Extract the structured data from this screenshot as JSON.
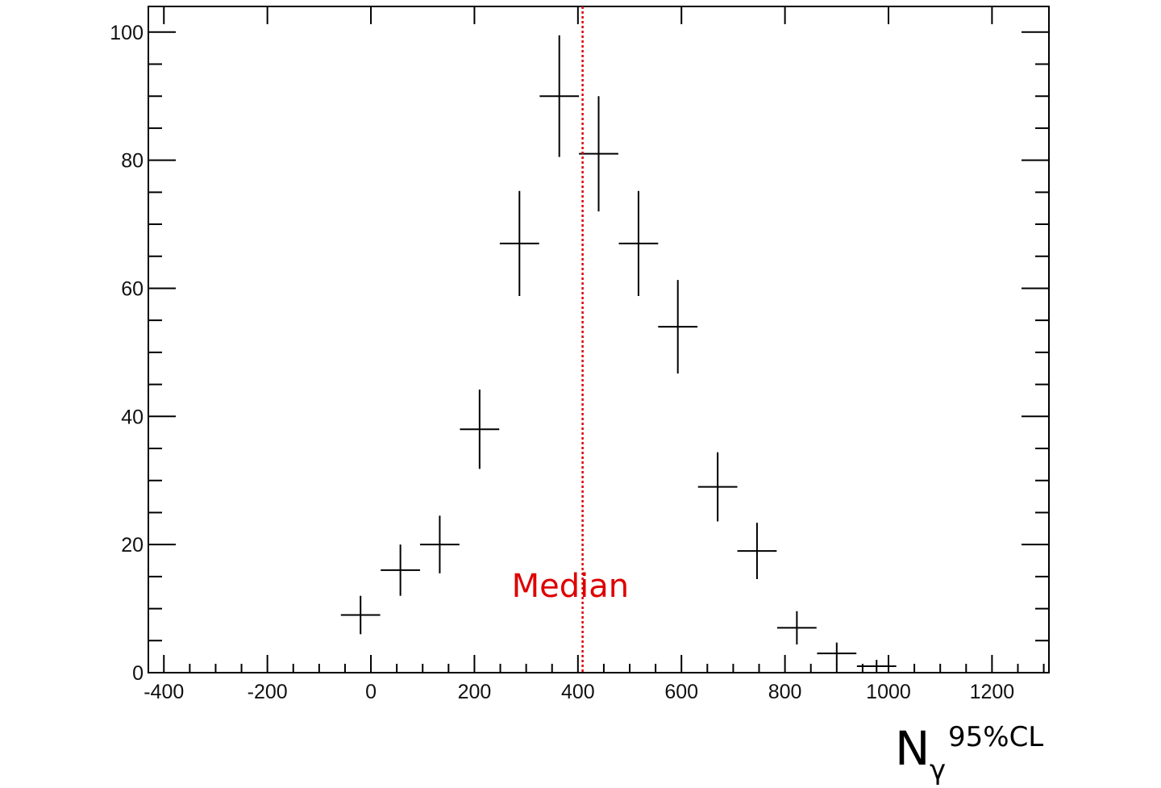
{
  "chart_data": {
    "type": "scatter",
    "style": "histogram-with-error-bars",
    "xlim": [
      -430,
      1310
    ],
    "ylim": [
      0,
      104
    ],
    "x_major_ticks": [
      -400,
      -200,
      0,
      200,
      400,
      600,
      800,
      1000,
      1200
    ],
    "y_major_ticks": [
      0,
      20,
      40,
      60,
      80,
      100
    ],
    "x_tick_labels": [
      "-400",
      "-200",
      "0",
      "200",
      "400",
      "600",
      "800",
      "1000",
      "1200"
    ],
    "y_tick_labels": [
      "0",
      "20",
      "40",
      "60",
      "80",
      "100"
    ],
    "bin_width": 76,
    "bins": [
      {
        "x": -20,
        "y": 9,
        "err": 3.0
      },
      {
        "x": 57,
        "y": 16,
        "err": 4.0
      },
      {
        "x": 133,
        "y": 20,
        "err": 4.5
      },
      {
        "x": 210,
        "y": 38,
        "err": 6.2
      },
      {
        "x": 287,
        "y": 67,
        "err": 8.2
      },
      {
        "x": 364,
        "y": 90,
        "err": 9.5
      },
      {
        "x": 440,
        "y": 81,
        "err": 9.0
      },
      {
        "x": 517,
        "y": 67,
        "err": 8.2
      },
      {
        "x": 593,
        "y": 54,
        "err": 7.3
      },
      {
        "x": 670,
        "y": 29,
        "err": 5.4
      },
      {
        "x": 746,
        "y": 19,
        "err": 4.4
      },
      {
        "x": 823,
        "y": 7,
        "err": 2.6
      },
      {
        "x": 900,
        "y": 3,
        "err": 1.7
      },
      {
        "x": 977,
        "y": 1,
        "err": 1.0
      }
    ],
    "median": {
      "x": 409,
      "label": "Median",
      "color": "#dd0000"
    },
    "xlabel": {
      "main": "N",
      "sub": "γ",
      "sup": "95%CL"
    },
    "ylabel": "",
    "title": "",
    "grid": false,
    "legend": "none"
  }
}
